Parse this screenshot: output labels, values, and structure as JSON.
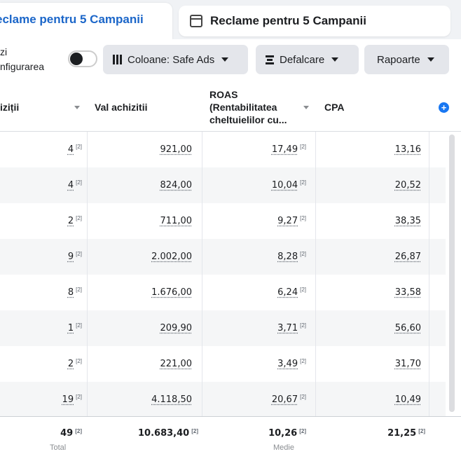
{
  "tabs": {
    "active_label": "eclame pentru 5 Campanii",
    "inactive_label": "Reclame pentru 5 Campanii"
  },
  "toolbar": {
    "toggle_line1": "zi",
    "toggle_line2": "nfigurarea",
    "columns_label": "Coloane: Safe Ads",
    "breakdown_label": "Defalcare",
    "reports_label": "Rapoarte"
  },
  "table": {
    "headers": {
      "purchases": "iziții",
      "purchase_value": "Val achizitii",
      "roas_line1": "ROAS",
      "roas_line2": "(Rentabilitatea",
      "roas_line3": "cheltuielilor cu...",
      "cpa": "CPA"
    },
    "footnote": "[2]",
    "rows": [
      {
        "purchases": "4",
        "value": "921,00",
        "roas": "17,49",
        "cpa": "13,16"
      },
      {
        "purchases": "4",
        "value": "824,00",
        "roas": "10,04",
        "cpa": "20,52"
      },
      {
        "purchases": "2",
        "value": "711,00",
        "roas": "9,27",
        "cpa": "38,35"
      },
      {
        "purchases": "9",
        "value": "2.002,00",
        "roas": "8,28",
        "cpa": "26,87"
      },
      {
        "purchases": "8",
        "value": "1.676,00",
        "roas": "6,24",
        "cpa": "33,58"
      },
      {
        "purchases": "1",
        "value": "209,90",
        "roas": "3,71",
        "cpa": "56,60"
      },
      {
        "purchases": "2",
        "value": "221,00",
        "roas": "3,49",
        "cpa": "31,70"
      },
      {
        "purchases": "19",
        "value": "4.118,50",
        "roas": "20,67",
        "cpa": "10,49"
      }
    ],
    "totals": {
      "purchases": "49",
      "purchases_sub": "Total",
      "value": "10.683,40",
      "roas": "10,26",
      "roas_sub": "Medie",
      "cpa": "21,25"
    }
  },
  "colors": {
    "accent_blue": "#1b66c9",
    "button_bg": "#e4e6eb",
    "row_alt": "#f5f6f7"
  }
}
